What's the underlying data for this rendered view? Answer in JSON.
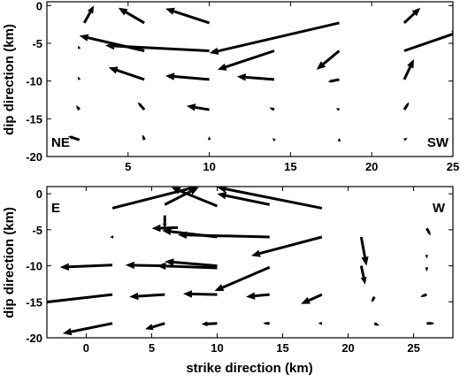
{
  "chart_data": [
    {
      "type": "quiver",
      "panel": "top",
      "ylabel": "dip direction (km)",
      "xlabel": "",
      "xlim": [
        0,
        25
      ],
      "ylim": [
        -20,
        0.5
      ],
      "xticks": [
        5,
        10,
        15,
        20,
        25
      ],
      "yticks": [
        0,
        -5,
        -10,
        -15,
        -20
      ],
      "grid": false,
      "annotations": [
        {
          "text": "NE",
          "position": "bottom-left"
        },
        {
          "text": "SW",
          "position": "bottom-right"
        }
      ],
      "vectors": [
        {
          "x": 2,
          "y": -5.7,
          "u": -0.1,
          "v": 0.4
        },
        {
          "x": 2,
          "y": -9.8,
          "u": -0.1,
          "v": 0.4
        },
        {
          "x": 2,
          "y": -13.8,
          "u": -0.2,
          "v": 0.6
        },
        {
          "x": 2,
          "y": -17.8,
          "u": -0.7,
          "v": 0.5
        },
        {
          "x": 2.3,
          "y": -2.3,
          "u": 0.6,
          "v": 2.3
        },
        {
          "x": 6,
          "y": -2.3,
          "u": -1.6,
          "v": 2.0
        },
        {
          "x": 6,
          "y": -6.0,
          "u": -4.0,
          "v": 2.0
        },
        {
          "x": 6,
          "y": -9.8,
          "u": -2.2,
          "v": 1.6
        },
        {
          "x": 6,
          "y": -13.8,
          "u": -0.4,
          "v": 1.0
        },
        {
          "x": 6,
          "y": -17.8,
          "u": -0.1,
          "v": 0.7
        },
        {
          "x": 10,
          "y": -2.3,
          "u": -2.7,
          "v": 1.9
        },
        {
          "x": 10,
          "y": -6.0,
          "u": -6.4,
          "v": 0.7
        },
        {
          "x": 10,
          "y": -9.8,
          "u": -2.7,
          "v": 0.5
        },
        {
          "x": 10,
          "y": -13.8,
          "u": -1.4,
          "v": 0.5
        },
        {
          "x": 10,
          "y": -17.8,
          "u": 0.0,
          "v": 0.5
        },
        {
          "x": 14,
          "y": -6.0,
          "u": -3.5,
          "v": -2.5
        },
        {
          "x": 14,
          "y": -9.8,
          "u": -2.3,
          "v": 0.4
        },
        {
          "x": 14,
          "y": -13.8,
          "u": -0.3,
          "v": 0.3
        },
        {
          "x": 14,
          "y": -17.8,
          "u": -0.1,
          "v": 0.3
        },
        {
          "x": 18,
          "y": -2.3,
          "u": -8.0,
          "v": -4.0
        },
        {
          "x": 18,
          "y": -6.0,
          "u": -1.4,
          "v": -2.5
        },
        {
          "x": 18,
          "y": -9.8,
          "u": -0.7,
          "v": -0.3
        },
        {
          "x": 18,
          "y": -13.8,
          "u": -0.2,
          "v": 0.2
        },
        {
          "x": 18,
          "y": -17.8,
          "u": 0.0,
          "v": 0.3
        },
        {
          "x": 22,
          "y": -2.3,
          "u": 1.0,
          "v": 2.0
        },
        {
          "x": 22,
          "y": -6.0,
          "u": 3.5,
          "v": 2.6
        },
        {
          "x": 22,
          "y": -9.8,
          "u": 0.6,
          "v": 2.7
        },
        {
          "x": 22,
          "y": -13.8,
          "u": 0.3,
          "v": 1.0
        },
        {
          "x": 22,
          "y": -17.8,
          "u": 0.2,
          "v": 0.3
        }
      ]
    },
    {
      "type": "quiver",
      "panel": "bottom",
      "ylabel": "dip direction (km)",
      "xlabel": "strike direction (km)",
      "xlim": [
        -3,
        28
      ],
      "ylim": [
        -20,
        1
      ],
      "xticks": [
        0,
        5,
        10,
        15,
        20,
        25
      ],
      "yticks": [
        0,
        -5,
        -10,
        -15,
        -20
      ],
      "grid": false,
      "annotations": [
        {
          "text": "E",
          "position": "top-left"
        },
        {
          "text": "W",
          "position": "top-right"
        }
      ],
      "vectors": [
        {
          "x": 2,
          "y": -2.0,
          "u": 6.5,
          "v": 3.0
        },
        {
          "x": 6,
          "y": -1.5,
          "u": 2.6,
          "v": 2.4
        },
        {
          "x": 10,
          "y": -1.7,
          "u": -3.5,
          "v": 2.6
        },
        {
          "x": 14,
          "y": -1.5,
          "u": -4.0,
          "v": 1.5
        },
        {
          "x": 18,
          "y": -2.0,
          "u": -8.0,
          "v": 2.9
        },
        {
          "x": 2,
          "y": -6.0,
          "u": -0.2,
          "v": 0.0
        },
        {
          "x": 6,
          "y": -3.0,
          "u": 0.0,
          "v": -1.8
        },
        {
          "x": 6,
          "y": -4.6,
          "u": 0.0,
          "v": -0.6
        },
        {
          "x": 7,
          "y": -4.7,
          "u": -2.0,
          "v": -0.1
        },
        {
          "x": 10,
          "y": -6.0,
          "u": -4.2,
          "v": 0.9
        },
        {
          "x": 14,
          "y": -6.0,
          "u": -7.0,
          "v": 0.3
        },
        {
          "x": 18,
          "y": -6.0,
          "u": -5.4,
          "v": -2.6
        },
        {
          "x": 21,
          "y": -6.0,
          "u": 0.4,
          "v": -4.0
        },
        {
          "x": 26,
          "y": -4.8,
          "u": 0.3,
          "v": -1.0
        },
        {
          "x": 26,
          "y": -8.5,
          "u": 0.0,
          "v": -0.5
        },
        {
          "x": 2,
          "y": -9.9,
          "u": -4.0,
          "v": -0.3
        },
        {
          "x": 6,
          "y": -10.0,
          "u": -3.0,
          "v": 0.1
        },
        {
          "x": 10,
          "y": -10.0,
          "u": -4.0,
          "v": 0.6
        },
        {
          "x": 10,
          "y": -10.3,
          "u": -4.6,
          "v": 0.3
        },
        {
          "x": 14,
          "y": -10.2,
          "u": -4.2,
          "v": -3.3
        },
        {
          "x": 21,
          "y": -10.0,
          "u": 0.3,
          "v": -2.6
        },
        {
          "x": 26,
          "y": -10.2,
          "u": 0.0,
          "v": -0.6
        },
        {
          "x": 2,
          "y": -14.0,
          "u": -5.8,
          "v": -1.2
        },
        {
          "x": 6,
          "y": -14.0,
          "u": -2.7,
          "v": -0.3
        },
        {
          "x": 10,
          "y": -14.0,
          "u": -2.6,
          "v": 0.1
        },
        {
          "x": 14,
          "y": -14.0,
          "u": -1.8,
          "v": -0.3
        },
        {
          "x": 18,
          "y": -14.0,
          "u": -1.6,
          "v": -1.3
        },
        {
          "x": 22,
          "y": -14.3,
          "u": -0.2,
          "v": -0.8
        },
        {
          "x": 26,
          "y": -14.0,
          "u": -0.5,
          "v": -0.3
        },
        {
          "x": 2,
          "y": -18.0,
          "u": -3.8,
          "v": -1.4
        },
        {
          "x": 6,
          "y": -18.0,
          "u": -1.5,
          "v": -0.8
        },
        {
          "x": 10,
          "y": -18.0,
          "u": -1.2,
          "v": -0.1
        },
        {
          "x": 14,
          "y": -18.0,
          "u": -0.5,
          "v": 0.0
        },
        {
          "x": 18,
          "y": -18.0,
          "u": -0.3,
          "v": 0.0
        },
        {
          "x": 22,
          "y": -18.0,
          "u": 0.4,
          "v": -0.3
        },
        {
          "x": 26,
          "y": -18.0,
          "u": 0.6,
          "v": 0.0
        }
      ]
    }
  ]
}
